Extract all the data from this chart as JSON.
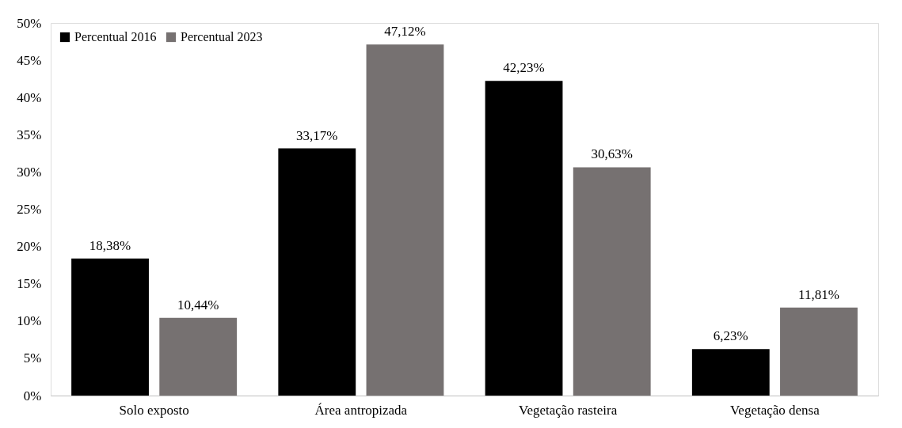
{
  "chart_data": {
    "type": "bar",
    "categories": [
      "Solo exposto",
      "Área antropizada",
      "Vegetação rasteira",
      "Vegetação densa"
    ],
    "series": [
      {
        "name": "Percentual 2016",
        "color": "#000000",
        "values": [
          18.38,
          33.17,
          42.23,
          6.23
        ],
        "value_labels": [
          "18,38%",
          "33,17%",
          "42,23%",
          "6,23%"
        ]
      },
      {
        "name": "Percentual 2023",
        "color": "#767171",
        "values": [
          10.44,
          47.12,
          30.63,
          11.81
        ],
        "value_labels": [
          "10,44%",
          "47,12%",
          "30,63%",
          "11,81%"
        ]
      }
    ],
    "ylim": [
      0,
      50
    ],
    "yticks": [
      {
        "value": 0,
        "label": "0%"
      },
      {
        "value": 5,
        "label": "5%"
      },
      {
        "value": 10,
        "label": "10%"
      },
      {
        "value": 15,
        "label": "15%"
      },
      {
        "value": 20,
        "label": "20%"
      },
      {
        "value": 25,
        "label": "25%"
      },
      {
        "value": 30,
        "label": "30%"
      },
      {
        "value": 35,
        "label": "35%"
      },
      {
        "value": 40,
        "label": "40%"
      },
      {
        "value": 45,
        "label": "45%"
      },
      {
        "value": 50,
        "label": "50%"
      }
    ],
    "legend": "top left",
    "grid": false
  }
}
